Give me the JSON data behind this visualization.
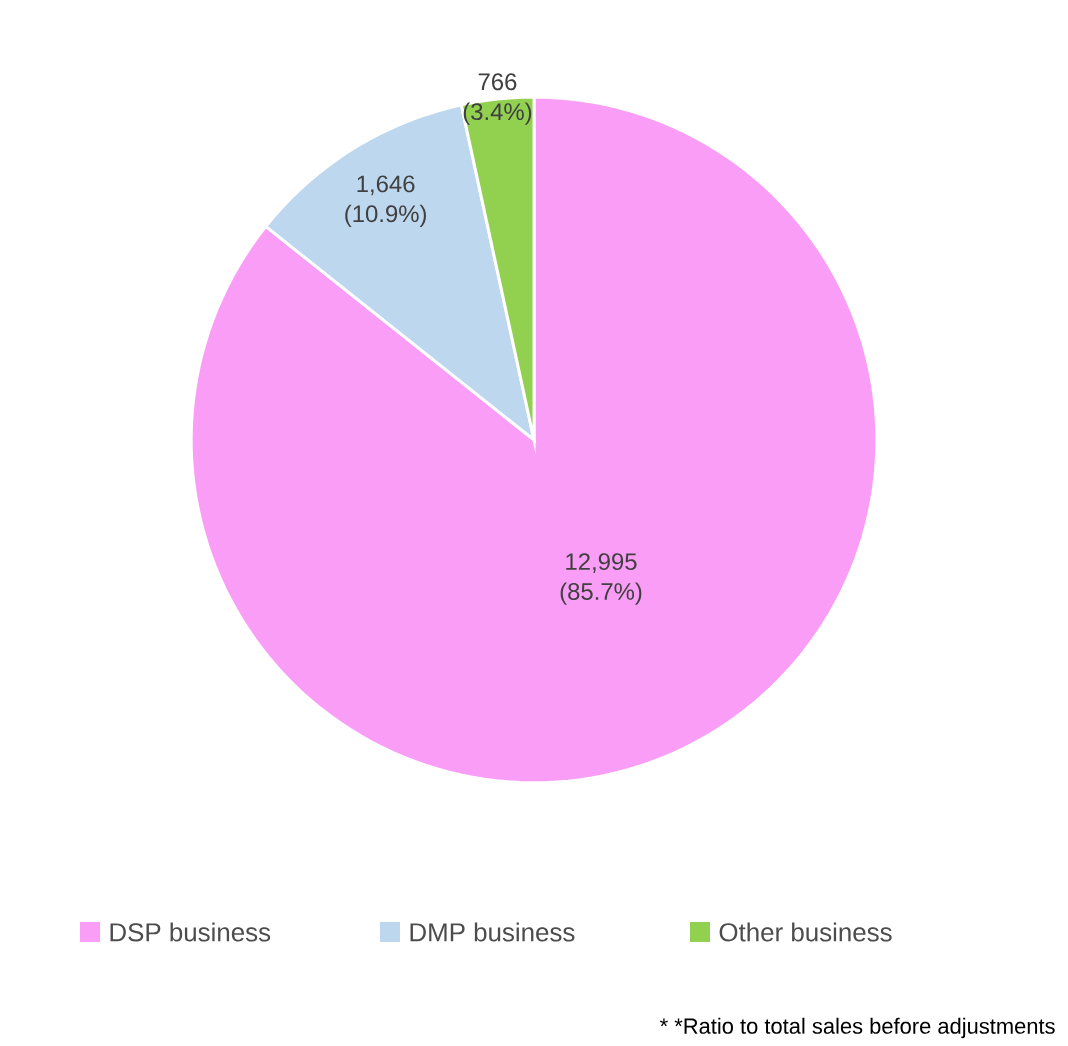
{
  "chart_data": {
    "type": "pie",
    "categories": [
      "DSP business",
      "DMP business",
      "Other business"
    ],
    "values": [
      85.7,
      10.9,
      3.4
    ],
    "colors": [
      "#fa9df7",
      "#bdd7ee",
      "#92d050"
    ],
    "value_labels": [
      "12,995 (85.7%)",
      "1,646 (10.9%)",
      "766 (3.4%)"
    ],
    "legend": "bottom",
    "annotations": [
      "* *Ratio to total sales before adjustments"
    ]
  }
}
